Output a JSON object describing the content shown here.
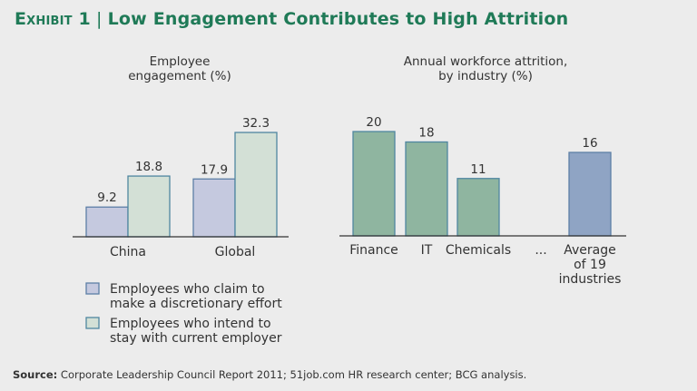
{
  "header": {
    "exhibit_label": "Exhibit 1",
    "title": "Low Engagement Contributes to High Attrition"
  },
  "colors": {
    "title_green": "#1f7a57",
    "blue_fill": "#c5c9df",
    "blue_stroke": "#5d7fa6",
    "green_light_fill": "#d3e0d6",
    "green_light_stroke": "#4f86a0",
    "green_dark_fill": "#8fb5a0",
    "green_dark_stroke": "#4f86a0",
    "avg_fill": "#8fa4c4",
    "avg_stroke": "#5d7fa6",
    "axis": "#333333"
  },
  "chart_data": [
    {
      "type": "bar",
      "title": "Employee engagement (%)",
      "title_lines": [
        "Employee",
        "engagement (%)"
      ],
      "categories": [
        "China",
        "Global"
      ],
      "series": [
        {
          "name": "Employees who claim to make a discretionary effort",
          "legend_lines": [
            "Employees who claim to",
            "make a discretionary effort"
          ],
          "values": [
            9.2,
            17.9
          ],
          "labels": [
            "9.2",
            "17.9"
          ]
        },
        {
          "name": "Employees who intend to stay with current employer",
          "legend_lines": [
            "Employees who intend to",
            "stay with current employer"
          ],
          "values": [
            18.8,
            32.3
          ],
          "labels": [
            "18.8",
            "32.3"
          ]
        }
      ],
      "ylim": [
        0,
        35
      ],
      "grid": false,
      "legend_position": "bottom"
    },
    {
      "type": "bar",
      "title": "Annual workforce attrition, by industry (%)",
      "title_lines": [
        "Annual workforce attrition,",
        "by industry (%)"
      ],
      "categories": [
        "Finance",
        "IT",
        "Chemicals",
        "...",
        "Average of 19 industries"
      ],
      "category_lines": [
        [
          "Finance"
        ],
        [
          "IT"
        ],
        [
          "Chemicals"
        ],
        [
          "..."
        ],
        [
          "Average",
          "of 19",
          "industries"
        ]
      ],
      "values": [
        20,
        18,
        11,
        null,
        16
      ],
      "labels": [
        "20",
        "18",
        "11",
        "",
        "16"
      ],
      "ylim": [
        0,
        22
      ],
      "grid": false
    }
  ],
  "footer": {
    "source_label": "Source:",
    "source_text": " Corporate Leadership Council Report 2011; 51job.com HR research center; BCG analysis."
  }
}
